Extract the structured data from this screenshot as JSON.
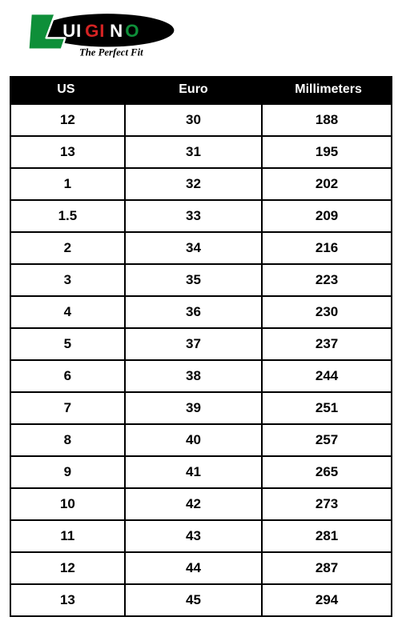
{
  "logo": {
    "brand_name": "LUIGINO",
    "tagline": "The Perfect Fit",
    "colors": {
      "green": "#0e8f39",
      "red": "#d42323",
      "black": "#000000",
      "white": "#ffffff"
    }
  },
  "table": {
    "header_bg": "#000000",
    "header_text_color": "#ffffff",
    "cell_border_color": "#000000",
    "cell_text_color": "#000000",
    "cell_bg": "#ffffff",
    "header_font_size": 16,
    "cell_font_size": 17,
    "column_widths_pct": [
      30,
      36,
      34
    ],
    "columns": [
      "US",
      "Euro",
      "Millimeters"
    ],
    "rows": [
      [
        "12",
        "30",
        "188"
      ],
      [
        "13",
        "31",
        "195"
      ],
      [
        "1",
        "32",
        "202"
      ],
      [
        "1.5",
        "33",
        "209"
      ],
      [
        "2",
        "34",
        "216"
      ],
      [
        "3",
        "35",
        "223"
      ],
      [
        "4",
        "36",
        "230"
      ],
      [
        "5",
        "37",
        "237"
      ],
      [
        "6",
        "38",
        "244"
      ],
      [
        "7",
        "39",
        "251"
      ],
      [
        "8",
        "40",
        "257"
      ],
      [
        "9",
        "41",
        "265"
      ],
      [
        "10",
        "42",
        "273"
      ],
      [
        "11",
        "43",
        "281"
      ],
      [
        "12",
        "44",
        "287"
      ],
      [
        "13",
        "45",
        "294"
      ]
    ]
  }
}
